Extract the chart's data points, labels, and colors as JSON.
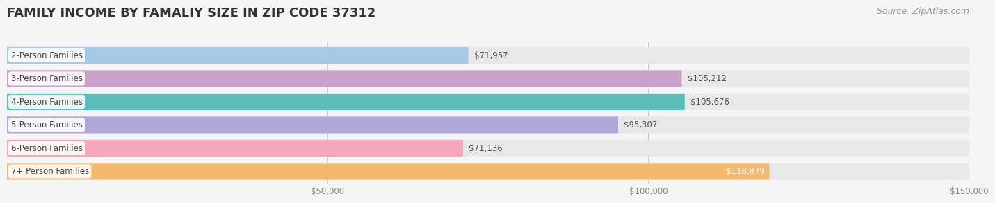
{
  "title": "FAMILY INCOME BY FAMALIY SIZE IN ZIP CODE 37312",
  "source": "Source: ZipAtlas.com",
  "categories": [
    "2-Person Families",
    "3-Person Families",
    "4-Person Families",
    "5-Person Families",
    "6-Person Families",
    "7+ Person Families"
  ],
  "values": [
    71957,
    105212,
    105676,
    95307,
    71136,
    118879
  ],
  "bar_colors": [
    "#a8c8e8",
    "#c9a0c8",
    "#5bbcb8",
    "#b0a8d8",
    "#f4a8b8",
    "#f5b870"
  ],
  "value_labels": [
    "$71,957",
    "$105,212",
    "$105,676",
    "$95,307",
    "$71,136",
    "$118,879"
  ],
  "value_inside": [
    false,
    false,
    false,
    false,
    false,
    true
  ],
  "xlim": [
    0,
    150000
  ],
  "xticks": [
    50000,
    100000,
    150000
  ],
  "xtick_labels": [
    "$50,000",
    "$100,000",
    "$150,000"
  ],
  "background_color": "#f5f5f5",
  "bar_bg_color": "#e8e8e8",
  "title_fontsize": 13,
  "label_fontsize": 8.5,
  "value_fontsize": 8.5,
  "source_fontsize": 9
}
